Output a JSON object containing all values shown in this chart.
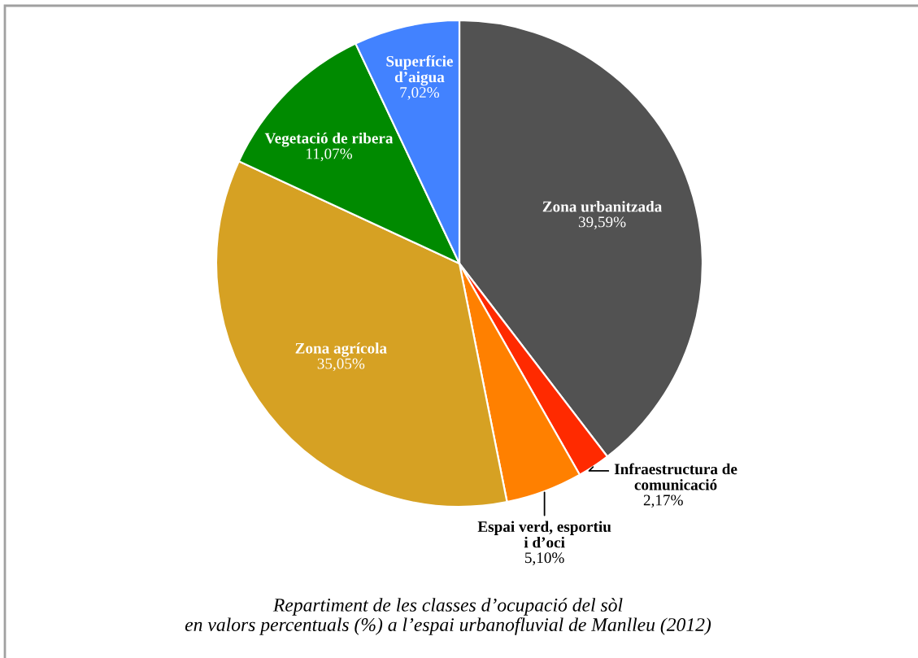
{
  "chart_data": {
    "type": "pie",
    "title": "Repartiment de les classes d’ocupació del sòl\nen valors percentuals (%) a l’espai urbanofluvial de Manlleu (2012)",
    "categories": [
      "Zona urbanitzada",
      "Infraestructura de\ncomunicació",
      "Espai verd, esportiu\ni d’oci",
      "Zona agrícola",
      "Vegetació de ribera",
      "Superfície\nd’aigua"
    ],
    "values": [
      39.59,
      2.17,
      5.1,
      35.05,
      11.07,
      7.02
    ],
    "value_labels": [
      "39,59%",
      "2,17%",
      "5,10%",
      "35,05%",
      "11,07%",
      "7,02%"
    ],
    "colors": [
      "#525252",
      "#ff2a00",
      "#ff8000",
      "#d6a123",
      "#008a00",
      "#4282ff"
    ]
  }
}
